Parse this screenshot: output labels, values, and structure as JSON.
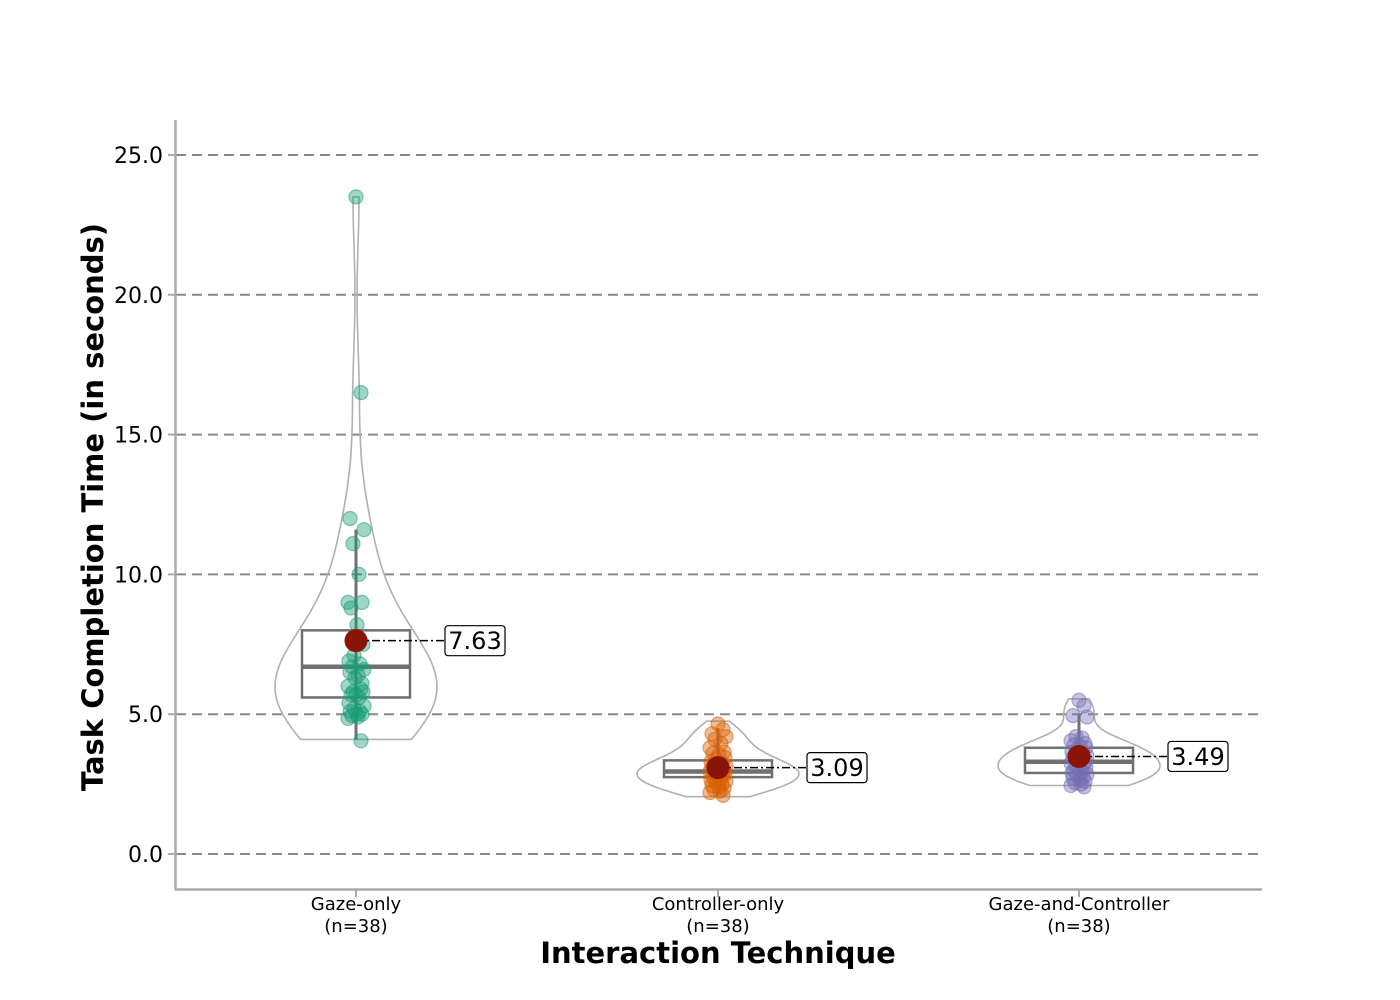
{
  "chart_data": {
    "type": "violin",
    "xlabel": "Interaction Technique",
    "ylabel": "Task Completion Time (in seconds)",
    "ylim": [
      -1.25,
      26.25
    ],
    "yticks": [
      0.0,
      5.0,
      10.0,
      15.0,
      20.0,
      25.0
    ],
    "ytick_labels": [
      "0.0",
      "5.0",
      "10.0",
      "15.0",
      "20.0",
      "25.0"
    ],
    "grid": "horizontal-dashed",
    "mean_color": "#8b1409",
    "groups": [
      {
        "name": "Gaze-only",
        "n_label": "(n=38)",
        "color": "#1b9e77",
        "mean": 7.63,
        "mean_label": "7.63",
        "box": {
          "q1": 5.6,
          "median": 6.7,
          "q3": 8.0,
          "whisker_low": 4.1,
          "whisker_high": 11.6
        },
        "violin_range": [
          4.1,
          23.5
        ],
        "points": [
          23.5,
          16.5,
          12.0,
          11.6,
          11.1,
          10.0,
          9.0,
          9.0,
          8.8,
          8.2,
          7.5,
          7.1,
          6.9,
          6.8,
          6.7,
          6.6,
          6.5,
          6.4,
          6.3,
          6.1,
          6.0,
          5.9,
          5.8,
          5.8,
          5.7,
          5.7,
          5.6,
          5.4,
          5.3,
          5.2,
          5.1,
          5.1,
          5.0,
          5.0,
          4.95,
          4.9,
          4.85,
          4.05
        ]
      },
      {
        "name": "Controller-only",
        "n_label": "(n=38)",
        "color": "#d95f02",
        "mean": 3.09,
        "mean_label": "3.09",
        "box": {
          "q1": 2.75,
          "median": 2.95,
          "q3": 3.35,
          "whisker_low": 2.1,
          "whisker_high": 4.5
        },
        "violin_range": [
          2.05,
          4.75
        ],
        "points": [
          4.65,
          4.45,
          4.3,
          4.2,
          4.1,
          3.95,
          3.8,
          3.65,
          3.6,
          3.55,
          3.45,
          3.4,
          3.3,
          3.25,
          3.2,
          3.15,
          3.1,
          3.05,
          3.0,
          3.0,
          2.95,
          2.9,
          2.9,
          2.85,
          2.8,
          2.75,
          2.7,
          2.65,
          2.6,
          2.55,
          2.5,
          2.45,
          2.4,
          2.35,
          2.3,
          2.25,
          2.2,
          2.1
        ]
      },
      {
        "name": "Gaze-and-Controller",
        "n_label": "(n=38)",
        "color": "#7570b3",
        "mean": 3.49,
        "mean_label": "3.49",
        "box": {
          "q1": 2.9,
          "median": 3.3,
          "q3": 3.8,
          "whisker_low": 2.4,
          "whisker_high": 5.0
        },
        "violin_range": [
          2.45,
          5.55
        ],
        "points": [
          5.5,
          5.3,
          4.95,
          4.9,
          4.2,
          4.15,
          4.05,
          3.95,
          3.9,
          3.85,
          3.8,
          3.7,
          3.65,
          3.6,
          3.55,
          3.5,
          3.45,
          3.4,
          3.35,
          3.3,
          3.25,
          3.2,
          3.15,
          3.1,
          3.05,
          3.0,
          2.95,
          2.9,
          2.85,
          2.8,
          2.75,
          2.7,
          2.65,
          2.6,
          2.55,
          2.5,
          2.45,
          2.4
        ]
      }
    ]
  }
}
